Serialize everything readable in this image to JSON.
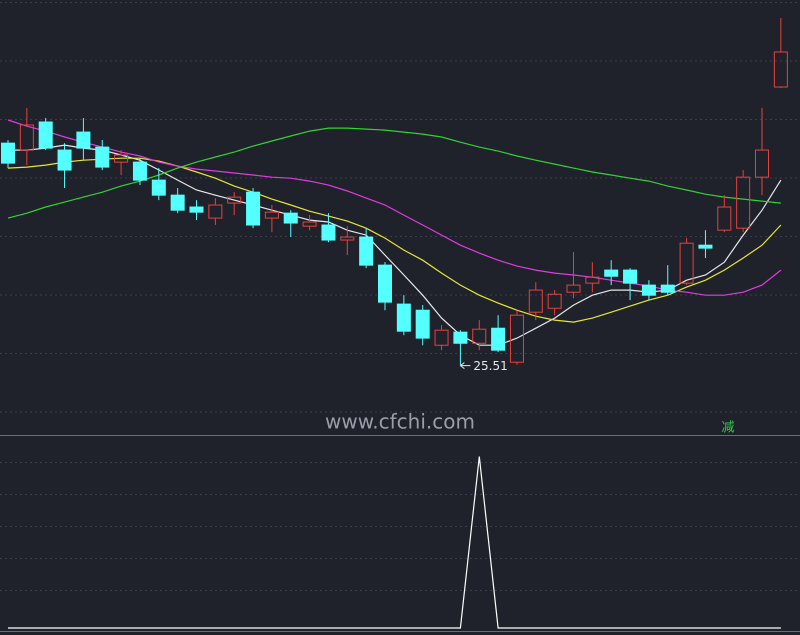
{
  "chart_data": [
    {
      "type": "candlestick",
      "watermark": "www.cfchi.com",
      "signal": "减",
      "up_color": "#e8413c",
      "down_color": "#54ffff",
      "ylim": [
        22,
        44
      ],
      "open": [
        36.76,
        36.41,
        37.83,
        36.41,
        37.32,
        36.56,
        35.8,
        35.8,
        34.89,
        34.13,
        33.53,
        32.97,
        33.73,
        34.28,
        32.97,
        33.22,
        32.56,
        32.62,
        31.86,
        32.01,
        30.59,
        28.62,
        28.31,
        26.54,
        27.2,
        26.64,
        27.4,
        25.68,
        28.21,
        28.41,
        29.22,
        29.68,
        30.34,
        30.34,
        29.58,
        29.58,
        29.68,
        31.6,
        32.36,
        32.46,
        35.04,
        39.6
      ],
      "high": [
        36.92,
        38.54,
        38.03,
        36.76,
        38.03,
        36.92,
        36.41,
        36.0,
        35.5,
        34.49,
        33.88,
        33.98,
        34.28,
        34.49,
        33.63,
        33.37,
        33.12,
        33.22,
        32.56,
        32.46,
        30.74,
        29.07,
        28.57,
        27.56,
        27.3,
        27.81,
        28.06,
        28.31,
        29.73,
        29.33,
        31.25,
        30.74,
        30.84,
        30.44,
        29.83,
        30.59,
        31.96,
        32.36,
        34.13,
        35.4,
        38.54,
        43.09
      ],
      "low": [
        35.5,
        35.65,
        36.41,
        34.49,
        35.9,
        35.4,
        35.15,
        34.64,
        33.88,
        33.22,
        32.87,
        32.62,
        33.12,
        32.46,
        32.26,
        32.01,
        32.36,
        31.75,
        31.1,
        30.44,
        28.31,
        27.05,
        26.54,
        26.29,
        25.51,
        26.29,
        26.19,
        25.55,
        27.81,
        28.06,
        28.92,
        29.22,
        29.58,
        28.82,
        28.82,
        29.07,
        29.58,
        30.95,
        32.26,
        32.26,
        34.13,
        39.55
      ],
      "close": [
        35.75,
        37.68,
        36.51,
        35.4,
        36.51,
        35.55,
        36.16,
        34.89,
        34.13,
        33.37,
        33.27,
        33.63,
        34.03,
        32.62,
        33.27,
        32.72,
        32.77,
        31.86,
        32.01,
        30.59,
        28.72,
        27.25,
        26.9,
        27.3,
        26.64,
        27.35,
        26.29,
        28.06,
        29.33,
        29.12,
        29.58,
        29.98,
        30.03,
        29.68,
        29.07,
        29.22,
        31.7,
        31.45,
        33.53,
        35.04,
        36.41,
        41.37
      ],
      "series": [
        {
          "color": "#e8e8e8",
          "values": [
            36.41,
            36.41,
            36.51,
            36.66,
            36.51,
            36.41,
            36.16,
            35.9,
            35.4,
            34.89,
            34.39,
            34.13,
            33.88,
            33.63,
            33.37,
            33.12,
            32.87,
            32.77,
            32.36,
            32.11,
            31.1,
            30.09,
            29.07,
            27.91,
            27.05,
            26.54,
            26.54,
            26.9,
            27.4,
            27.91,
            28.57,
            29.07,
            29.33,
            29.33,
            29.22,
            29.33,
            29.83,
            30.09,
            30.74,
            32.11,
            33.37,
            34.89
          ]
        },
        {
          "color": "#e6e632",
          "values": [
            35.5,
            35.55,
            35.65,
            35.8,
            35.9,
            35.95,
            36.0,
            36.0,
            35.85,
            35.6,
            35.3,
            34.99,
            34.59,
            34.28,
            33.93,
            33.63,
            33.32,
            33.07,
            32.82,
            32.46,
            31.96,
            31.35,
            30.84,
            30.19,
            29.58,
            29.07,
            28.67,
            28.31,
            28.01,
            27.81,
            27.71,
            27.91,
            28.21,
            28.52,
            28.82,
            29.07,
            29.48,
            29.83,
            30.34,
            30.95,
            31.6,
            32.62
          ]
        },
        {
          "color": "#e03ce0",
          "values": [
            37.93,
            37.62,
            37.37,
            37.07,
            36.81,
            36.56,
            36.31,
            36.11,
            35.8,
            35.6,
            35.45,
            35.35,
            35.25,
            35.15,
            35.04,
            34.99,
            34.84,
            34.64,
            34.34,
            33.98,
            33.63,
            33.12,
            32.62,
            32.11,
            31.6,
            31.2,
            30.84,
            30.54,
            30.34,
            30.19,
            30.09,
            29.98,
            29.83,
            29.68,
            29.53,
            29.33,
            29.22,
            29.07,
            29.07,
            29.22,
            29.58,
            30.34
          ]
        },
        {
          "color": "#32d232",
          "values": [
            32.97,
            33.22,
            33.53,
            33.78,
            34.03,
            34.28,
            34.59,
            34.84,
            35.15,
            35.5,
            35.8,
            36.06,
            36.31,
            36.61,
            36.87,
            37.12,
            37.37,
            37.52,
            37.52,
            37.47,
            37.42,
            37.32,
            37.22,
            37.07,
            36.81,
            36.56,
            36.36,
            36.11,
            35.9,
            35.7,
            35.5,
            35.3,
            35.15,
            34.99,
            34.84,
            34.59,
            34.39,
            34.18,
            34.03,
            33.93,
            33.83,
            33.73
          ]
        }
      ]
    },
    {
      "type": "line",
      "color": "#ffffff",
      "ylim": [
        0,
        1.05
      ],
      "values": [
        0,
        0,
        0,
        0,
        0,
        0,
        0,
        0,
        0,
        0,
        0,
        0,
        0,
        0,
        0,
        0,
        0,
        0,
        0,
        0,
        0,
        0,
        0,
        0,
        0,
        1,
        0,
        0,
        0,
        0,
        0,
        0,
        0,
        0,
        0,
        0,
        0,
        0,
        0,
        0,
        0,
        0
      ]
    }
  ]
}
